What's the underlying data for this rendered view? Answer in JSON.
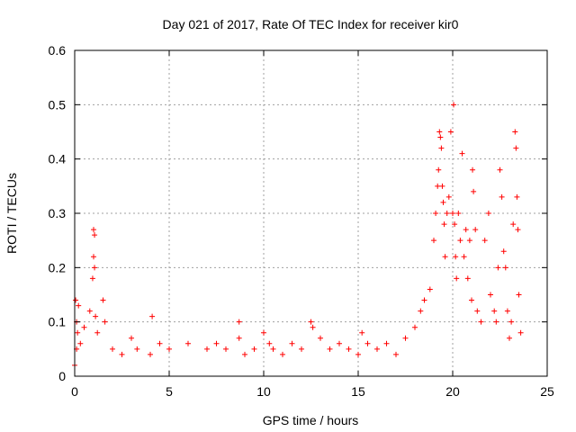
{
  "chart_data": {
    "type": "scatter",
    "title": "Day 021 of 2017, Rate Of TEC Index for receiver kir0",
    "xlabel": "GPS time / hours",
    "ylabel": "ROTI / TECUs",
    "xlim": [
      0,
      25
    ],
    "ylim": [
      0,
      0.6
    ],
    "xticks": [
      0,
      5,
      10,
      15,
      20,
      25
    ],
    "yticks": [
      0,
      0.1,
      0.2,
      0.3,
      0.4,
      0.5,
      0.6
    ],
    "xtick_labels": [
      "0",
      "5",
      "10",
      "15",
      "20",
      "25"
    ],
    "ytick_labels": [
      "0",
      "0.1",
      "0.2",
      "0.3",
      "0.4",
      "0.5",
      "0.6"
    ],
    "grid": true,
    "marker": "+",
    "color": "#ff0000",
    "series": [
      {
        "name": "ROTI",
        "x": [
          0.0,
          0.05,
          0.1,
          0.1,
          0.15,
          0.2,
          0.3,
          0.5,
          0.8,
          0.95,
          1.0,
          1.0,
          1.05,
          1.05,
          1.1,
          1.2,
          1.5,
          1.6,
          2.0,
          2.5,
          3.0,
          3.3,
          4.0,
          4.1,
          4.5,
          5.0,
          6.0,
          7.0,
          7.5,
          8.0,
          8.7,
          8.7,
          9.0,
          9.5,
          10.0,
          10.3,
          10.5,
          11.0,
          11.5,
          12.0,
          12.5,
          12.6,
          13.0,
          13.5,
          14.0,
          14.5,
          15.0,
          15.2,
          15.5,
          16.0,
          16.5,
          17.0,
          17.5,
          18.0,
          18.3,
          18.5,
          18.8,
          19.0,
          19.1,
          19.2,
          19.25,
          19.3,
          19.35,
          19.4,
          19.45,
          19.5,
          19.55,
          19.6,
          19.7,
          19.8,
          19.9,
          20.0,
          20.05,
          20.1,
          20.15,
          20.2,
          20.3,
          20.4,
          20.5,
          20.6,
          20.7,
          20.8,
          20.9,
          21.0,
          21.05,
          21.1,
          21.2,
          21.3,
          21.5,
          21.7,
          21.9,
          22.0,
          22.2,
          22.3,
          22.4,
          22.5,
          22.6,
          22.7,
          22.8,
          22.9,
          23.0,
          23.1,
          23.2,
          23.3,
          23.35,
          23.4,
          23.45,
          23.5,
          23.6
        ],
        "y": [
          0.02,
          0.14,
          0.1,
          0.05,
          0.08,
          0.13,
          0.06,
          0.09,
          0.12,
          0.18,
          0.27,
          0.22,
          0.26,
          0.2,
          0.11,
          0.08,
          0.14,
          0.1,
          0.05,
          0.04,
          0.07,
          0.05,
          0.04,
          0.11,
          0.06,
          0.05,
          0.06,
          0.05,
          0.06,
          0.05,
          0.1,
          0.07,
          0.04,
          0.05,
          0.08,
          0.06,
          0.05,
          0.04,
          0.06,
          0.05,
          0.1,
          0.09,
          0.07,
          0.05,
          0.06,
          0.05,
          0.04,
          0.08,
          0.06,
          0.05,
          0.06,
          0.04,
          0.07,
          0.09,
          0.12,
          0.14,
          0.16,
          0.25,
          0.3,
          0.35,
          0.38,
          0.45,
          0.44,
          0.42,
          0.35,
          0.32,
          0.28,
          0.22,
          0.3,
          0.33,
          0.45,
          0.3,
          0.5,
          0.28,
          0.22,
          0.18,
          0.3,
          0.25,
          0.41,
          0.22,
          0.27,
          0.18,
          0.25,
          0.14,
          0.38,
          0.34,
          0.27,
          0.12,
          0.1,
          0.25,
          0.3,
          0.15,
          0.12,
          0.1,
          0.2,
          0.38,
          0.33,
          0.23,
          0.2,
          0.12,
          0.07,
          0.1,
          0.28,
          0.45,
          0.42,
          0.33,
          0.27,
          0.15,
          0.08
        ]
      }
    ]
  }
}
